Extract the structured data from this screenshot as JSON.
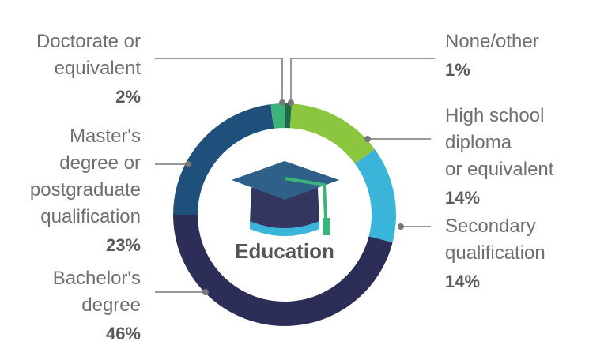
{
  "chart_data": {
    "type": "donut",
    "center_label": "Education",
    "categories": [
      "None/other",
      "High school\ndiploma\nor equivalent",
      "Secondary\nqualification",
      "Bachelor's\ndegree",
      "Master's\ndegree or\npostgraduate\nqualification",
      "Doctorate or\nequivalent"
    ],
    "values": [
      1,
      14,
      14,
      46,
      23,
      2
    ],
    "value_labels": [
      "1%",
      "14%",
      "14%",
      "46%",
      "23%",
      "2%"
    ],
    "colors": [
      "#1d6b47",
      "#8cc63f",
      "#3ab5d9",
      "#2c2e57",
      "#1f4f7b",
      "#3bb37a"
    ]
  }
}
